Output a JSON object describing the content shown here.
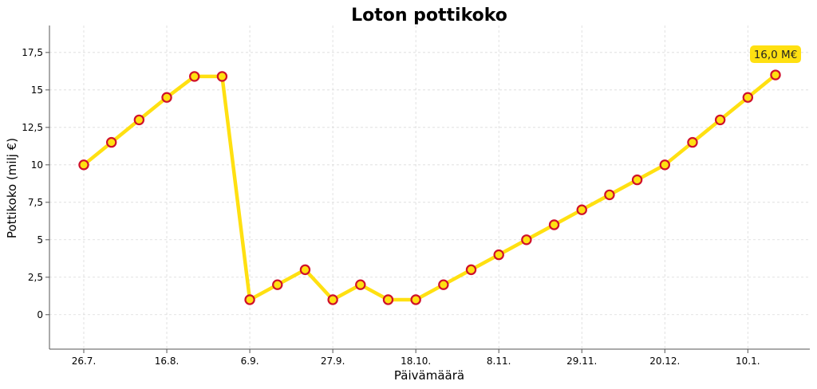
{
  "chart_data": {
    "type": "line",
    "title": "Loton pottikoko",
    "xlabel": "Päivämäärä",
    "ylabel": "Pottikoko (milj €)",
    "ylim": [
      -2.3,
      19.3
    ],
    "yticks": [
      0,
      2.5,
      5,
      7.5,
      10,
      12.5,
      15,
      17.5
    ],
    "ytick_labels": [
      "0",
      "2,5",
      "5",
      "7,5",
      "10",
      "12,5",
      "15",
      "17,5"
    ],
    "xticks": [
      {
        "label": "26.7.",
        "index": 0
      },
      {
        "label": "16.8.",
        "index": 3
      },
      {
        "label": "6.9.",
        "index": 6
      },
      {
        "label": "27.9.",
        "index": 9
      },
      {
        "label": "18.10.",
        "index": 12
      },
      {
        "label": "8.11.",
        "index": 15
      },
      {
        "label": "29.11.",
        "index": 18
      },
      {
        "label": "20.12.",
        "index": 21
      },
      {
        "label": "10.1.",
        "index": 24
      }
    ],
    "x_interval_days": 7,
    "values": [
      10,
      11.5,
      13,
      14.5,
      15.9,
      15.9,
      1,
      2,
      3,
      1,
      2,
      1,
      1,
      2,
      3,
      4,
      5,
      6,
      7,
      8,
      9,
      10,
      11.5,
      13,
      14.5,
      16
    ],
    "annotation": {
      "text": "16,0 M€",
      "point_index": 25
    },
    "colors": {
      "line": "#FFE011",
      "marker_edge": "#D0102A",
      "marker_fill": "#FFE011",
      "annotation_bg": "#FFE011"
    },
    "grid": true,
    "legend": "none"
  }
}
